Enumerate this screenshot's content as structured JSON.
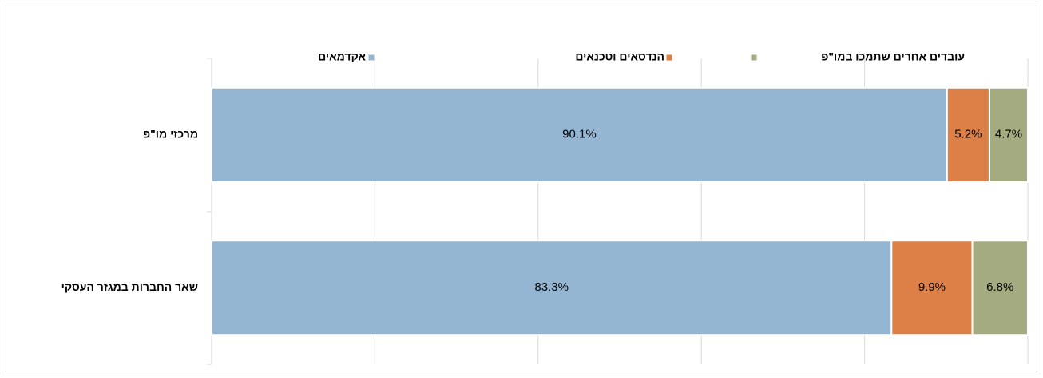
{
  "chart_data": {
    "type": "stacked_hbar",
    "categories": [
      "מרכזי מו\"פ",
      "שאר החברות במגזר העסקי"
    ],
    "series": [
      {
        "name": "אקדמאים",
        "color": "#94b6d2",
        "values": [
          90.1,
          83.3
        ],
        "value_labels": [
          "90.1%",
          "83.3%"
        ]
      },
      {
        "name": "הנדסאים וטכנאים",
        "color": "#dd8047",
        "values": [
          5.2,
          9.9
        ],
        "value_labels": [
          "5.2%",
          "9.9%"
        ]
      },
      {
        "name": "עובדים אחרים שתמכו במו\"פ",
        "color": "#a5ab81",
        "values": [
          4.7,
          6.8
        ],
        "value_labels": [
          "4.7%",
          "6.8%"
        ]
      }
    ],
    "xlim": [
      0,
      100
    ],
    "xticks": [
      0,
      20,
      40,
      60,
      80,
      100
    ],
    "grid": true,
    "legend": "top"
  }
}
